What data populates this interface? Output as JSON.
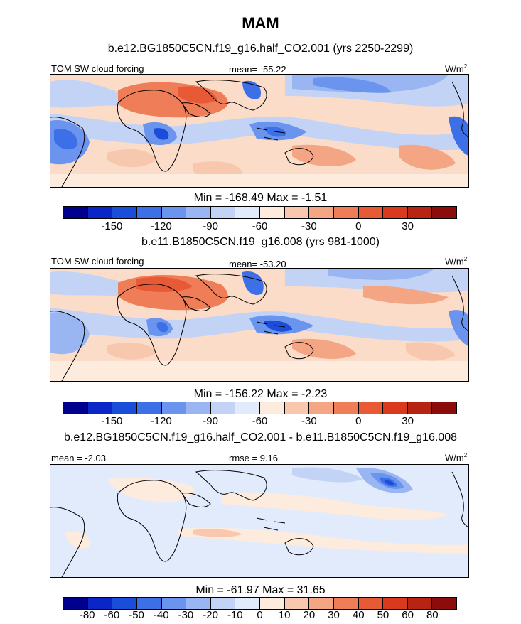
{
  "title": "MAM",
  "palette": [
    "#00008f",
    "#0a26c7",
    "#1b4ddb",
    "#3d70e6",
    "#6b94ee",
    "#9ab6f2",
    "#c3d3f5",
    "#e2ebfb",
    "#fdebdd",
    "#f8c8ae",
    "#f4a584",
    "#ef7e58",
    "#e85a35",
    "#d9391d",
    "#b72414",
    "#8c0c0c"
  ],
  "panels": [
    {
      "header": "b.e12.BG1850C5CN.f19_g16.half_CO2.001 (yrs 2250-2299)",
      "left": "TOM SW cloud forcing",
      "center": "mean= -55.22",
      "units": "W/m",
      "units_sup": "2",
      "minmax": "Min = -168.49 Max =  -1.51",
      "ticks": [
        "-150",
        "-120",
        "-90",
        "-60",
        "-30",
        "0",
        "30"
      ]
    },
    {
      "header": "b.e11.B1850C5CN.f19_g16.008 (yrs 981-1000)",
      "left": "TOM SW cloud forcing",
      "center": "mean= -53.20",
      "units": "W/m",
      "units_sup": "2",
      "minmax": "Min = -156.22 Max =  -2.23",
      "ticks": [
        "-150",
        "-120",
        "-90",
        "-60",
        "-30",
        "0",
        "30"
      ]
    },
    {
      "header": "b.e12.BG1850C5CN.f19_g16.half_CO2.001 - b.e11.B1850C5CN.f19_g16.008",
      "left": "mean =  -2.03",
      "center": "rmse =   9.16",
      "units": "W/m",
      "units_sup": "2",
      "minmax": "Min = -61.97 Max =  31.65",
      "ticks": [
        "-80",
        "-60",
        "-50",
        "-40",
        "-30",
        "-20",
        "-10",
        "0",
        "10",
        "20",
        "30",
        "40",
        "50",
        "60",
        "80"
      ]
    }
  ]
}
